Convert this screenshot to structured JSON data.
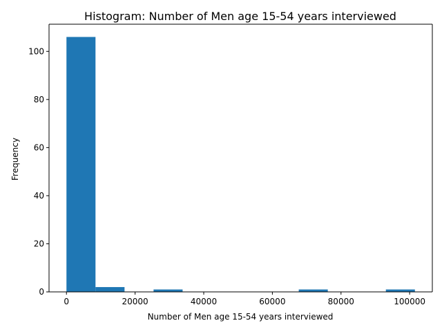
{
  "chart_data": {
    "type": "bar",
    "title": "Histogram: Number of Men age 15-54 years interviewed",
    "xlabel": "Number of Men age 15-54 years interviewed",
    "ylabel": "Frequency",
    "bar_color": "#1f77b4",
    "bin_edges": [
      0,
      8461,
      16922,
      25383,
      33844,
      42305,
      50766,
      59227,
      67688,
      76149,
      84610,
      93071,
      101532
    ],
    "values": [
      106,
      2,
      0,
      1,
      0,
      0,
      0,
      0,
      1,
      0,
      0,
      1
    ],
    "xlim": [
      -5077,
      106609
    ],
    "ylim": [
      0,
      111.3
    ],
    "xticks": [
      0,
      20000,
      40000,
      60000,
      80000,
      100000
    ],
    "xtick_labels": [
      "0",
      "20000",
      "40000",
      "60000",
      "80000",
      "100000"
    ],
    "yticks": [
      0,
      20,
      40,
      60,
      80,
      100
    ],
    "ytick_labels": [
      "0",
      "20",
      "40",
      "60",
      "80",
      "100"
    ],
    "grid": false,
    "legend": "none"
  }
}
